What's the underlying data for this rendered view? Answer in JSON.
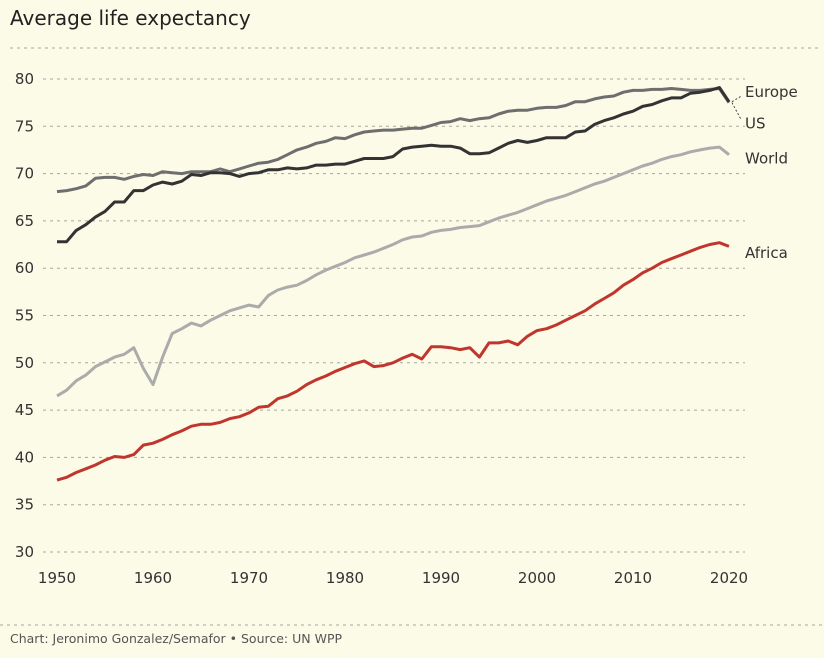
{
  "chart_data": {
    "type": "line",
    "title": "Average life expectancy",
    "footer": "Chart: Jeronimo Gonzalez/Semafor • Source: UN WPP",
    "xlabel": "",
    "ylabel": "",
    "xlim": [
      1950,
      2020
    ],
    "ylim": [
      30,
      80
    ],
    "grid": true,
    "x_ticks": [
      1950,
      1960,
      1970,
      1980,
      1990,
      2000,
      2010,
      2020
    ],
    "y_ticks": [
      30,
      35,
      40,
      45,
      50,
      55,
      60,
      65,
      70,
      75,
      80
    ],
    "x_start": 1950,
    "series": [
      {
        "name": "US",
        "color": "#6e6e6e",
        "values": [
          68.1,
          68.2,
          68.4,
          68.7,
          69.5,
          69.6,
          69.6,
          69.4,
          69.7,
          69.9,
          69.8,
          70.2,
          70.1,
          70.0,
          70.2,
          70.2,
          70.2,
          70.5,
          70.2,
          70.5,
          70.8,
          71.1,
          71.2,
          71.5,
          72.0,
          72.5,
          72.8,
          73.2,
          73.4,
          73.8,
          73.7,
          74.1,
          74.4,
          74.5,
          74.6,
          74.6,
          74.7,
          74.8,
          74.8,
          75.1,
          75.4,
          75.5,
          75.8,
          75.6,
          75.8,
          75.9,
          76.3,
          76.6,
          76.7,
          76.7,
          76.9,
          77.0,
          77.0,
          77.2,
          77.6,
          77.6,
          77.9,
          78.1,
          78.2,
          78.6,
          78.8,
          78.8,
          78.9,
          78.9,
          79.0,
          78.9,
          78.8,
          78.8,
          78.9,
          79.0,
          77.5
        ]
      },
      {
        "name": "Europe",
        "color": "#333333",
        "values": [
          62.8,
          62.8,
          64.0,
          64.6,
          65.4,
          66.0,
          67.0,
          67.0,
          68.2,
          68.2,
          68.8,
          69.1,
          68.9,
          69.2,
          69.9,
          69.8,
          70.1,
          70.1,
          70.0,
          69.7,
          70.0,
          70.1,
          70.4,
          70.4,
          70.6,
          70.5,
          70.6,
          70.9,
          70.9,
          71.0,
          71.0,
          71.3,
          71.6,
          71.6,
          71.6,
          71.8,
          72.6,
          72.8,
          72.9,
          73.0,
          72.9,
          72.9,
          72.7,
          72.1,
          72.1,
          72.2,
          72.7,
          73.2,
          73.5,
          73.3,
          73.5,
          73.8,
          73.8,
          73.8,
          74.4,
          74.5,
          75.2,
          75.6,
          75.9,
          76.3,
          76.6,
          77.1,
          77.3,
          77.7,
          78.0,
          78.0,
          78.5,
          78.6,
          78.8,
          79.1,
          77.6
        ]
      },
      {
        "name": "World",
        "color": "#ababab",
        "values": [
          46.5,
          47.1,
          48.1,
          48.7,
          49.6,
          50.1,
          50.6,
          50.9,
          51.6,
          49.4,
          47.7,
          50.6,
          53.1,
          53.6,
          54.2,
          53.9,
          54.5,
          55.0,
          55.5,
          55.8,
          56.1,
          55.9,
          57.1,
          57.7,
          58.0,
          58.2,
          58.7,
          59.3,
          59.8,
          60.2,
          60.6,
          61.1,
          61.4,
          61.7,
          62.1,
          62.5,
          63.0,
          63.3,
          63.4,
          63.8,
          64.0,
          64.1,
          64.3,
          64.4,
          64.5,
          64.9,
          65.3,
          65.6,
          65.9,
          66.3,
          66.7,
          67.1,
          67.4,
          67.7,
          68.1,
          68.5,
          68.9,
          69.2,
          69.6,
          70.0,
          70.4,
          70.8,
          71.1,
          71.5,
          71.8,
          72.0,
          72.3,
          72.5,
          72.7,
          72.8,
          72.0
        ]
      },
      {
        "name": "Africa",
        "color": "#c0362c",
        "values": [
          37.6,
          37.9,
          38.4,
          38.8,
          39.2,
          39.7,
          40.1,
          40.0,
          40.3,
          41.3,
          41.5,
          41.9,
          42.4,
          42.8,
          43.3,
          43.5,
          43.5,
          43.7,
          44.1,
          44.3,
          44.7,
          45.3,
          45.4,
          46.2,
          46.5,
          47.0,
          47.7,
          48.2,
          48.6,
          49.1,
          49.5,
          49.9,
          50.2,
          49.6,
          49.7,
          50.0,
          50.5,
          50.9,
          50.4,
          51.7,
          51.7,
          51.6,
          51.4,
          51.6,
          50.6,
          52.1,
          52.1,
          52.3,
          51.9,
          52.8,
          53.4,
          53.6,
          54.0,
          54.5,
          55.0,
          55.5,
          56.2,
          56.8,
          57.4,
          58.2,
          58.8,
          59.5,
          60.0,
          60.6,
          61.0,
          61.4,
          61.8,
          62.2,
          62.5,
          62.7,
          62.3
        ]
      }
    ]
  }
}
